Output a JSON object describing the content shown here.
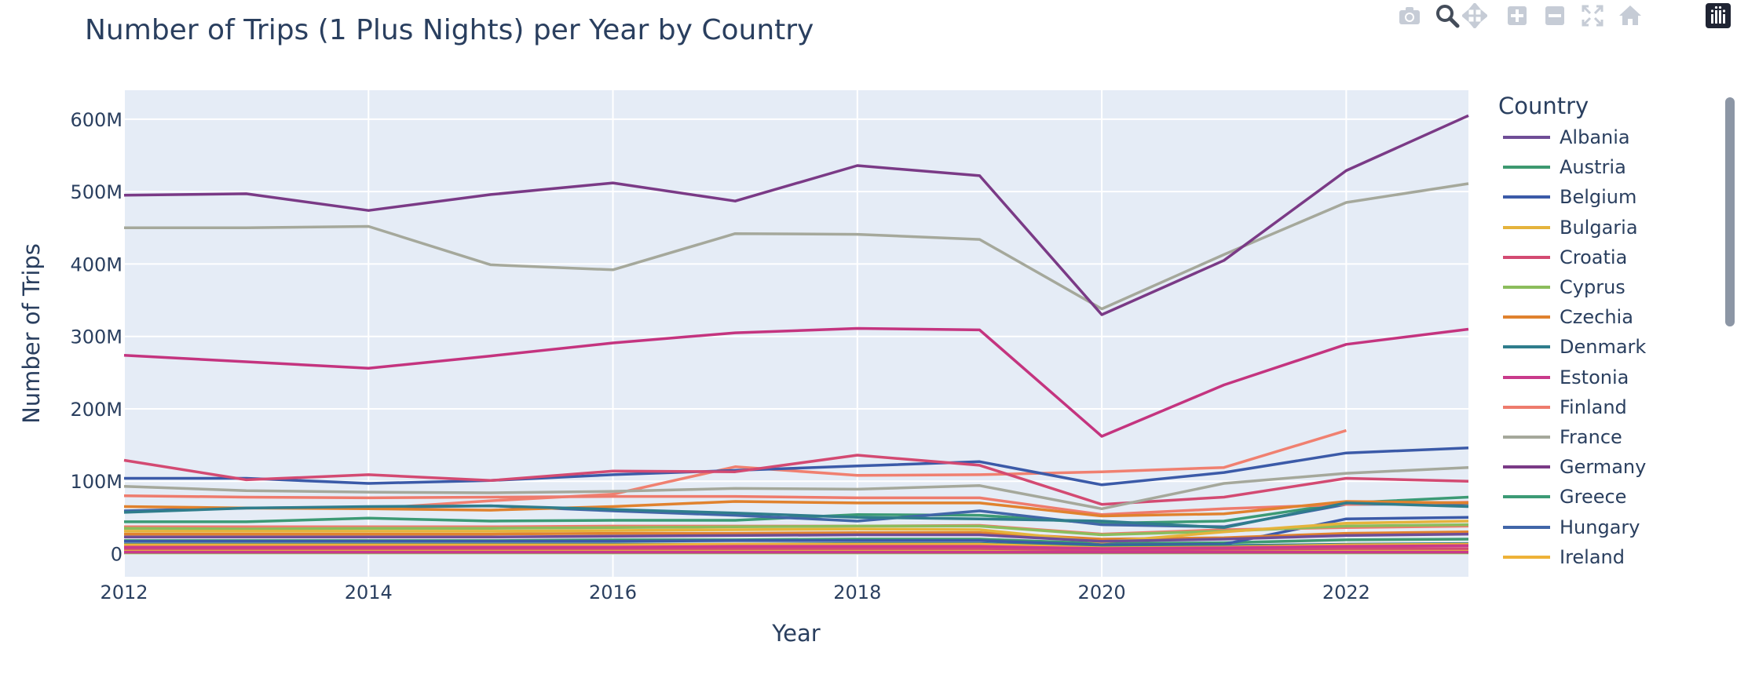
{
  "title": "Number of Trips (1 Plus Nights) per Year by Country",
  "modebar": {
    "icons": [
      "camera-icon",
      "zoom-icon",
      "pan-icon",
      "zoom-in-icon",
      "zoom-out-icon",
      "autoscale-icon",
      "home-icon",
      "plotly-logo-icon"
    ]
  },
  "chart_data": {
    "type": "line",
    "title": "Number of Trips (1 Plus Nights) per Year by Country",
    "xlabel": "Year",
    "ylabel": "Number of Trips",
    "x": [
      2012,
      2013,
      2014,
      2015,
      2016,
      2017,
      2018,
      2019,
      2020,
      2021,
      2022,
      2023
    ],
    "xlim": [
      2012,
      2023
    ],
    "ylim": [
      -32000000,
      640000000
    ],
    "x_ticks": [
      "2012",
      "2014",
      "2016",
      "2018",
      "2020",
      "2022"
    ],
    "y_ticks": [
      {
        "value": 0,
        "label": "0"
      },
      {
        "value": 100000000,
        "label": "100M"
      },
      {
        "value": 200000000,
        "label": "200M"
      },
      {
        "value": 300000000,
        "label": "300M"
      },
      {
        "value": 400000000,
        "label": "400M"
      },
      {
        "value": 500000000,
        "label": "500M"
      },
      {
        "value": 600000000,
        "label": "600M"
      }
    ],
    "grid": true,
    "plot_bgcolor": "#E5ECF6",
    "legend_title": "Country",
    "legend_position": "right",
    "series": [
      {
        "name": "Albania",
        "color": "#6F4D96",
        "values": [
          null,
          null,
          null,
          null,
          null,
          null,
          null,
          null,
          null,
          null,
          null,
          null
        ]
      },
      {
        "name": "Austria",
        "color": "#3D9970",
        "values": [
          18000000,
          18000000,
          18000000,
          18000000,
          19000000,
          19000000,
          20000000,
          20000000,
          14000000,
          15000000,
          19000000,
          20000000
        ]
      },
      {
        "name": "Belgium",
        "color": "#3B5AA8",
        "values": [
          17000000,
          17000000,
          17000000,
          17000000,
          17000000,
          18000000,
          18000000,
          18000000,
          12000000,
          13000000,
          48000000,
          50000000
        ]
      },
      {
        "name": "Bulgaria",
        "color": "#E5B33C",
        "values": [
          4000000,
          4000000,
          4000000,
          4000000,
          4000000,
          4000000,
          4000000,
          4000000,
          3000000,
          4000000,
          5000000,
          5000000
        ]
      },
      {
        "name": "Croatia",
        "color": "#D34A72",
        "values": [
          7000000,
          7000000,
          7000000,
          7000000,
          7000000,
          7000000,
          7000000,
          7000000,
          5000000,
          6000000,
          7000000,
          7000000
        ]
      },
      {
        "name": "Cyprus",
        "color": "#8BBD5C",
        "values": [
          1000000,
          1000000,
          1000000,
          1000000,
          1000000,
          1000000,
          1000000,
          1000000,
          1000000,
          1000000,
          1000000,
          1000000
        ]
      },
      {
        "name": "Czechia",
        "color": "#E0822E",
        "values": [
          27000000,
          27000000,
          27000000,
          27000000,
          28000000,
          28000000,
          29000000,
          29000000,
          20000000,
          22000000,
          28000000,
          30000000
        ]
      },
      {
        "name": "Denmark",
        "color": "#2F7D8C",
        "values": [
          13000000,
          13000000,
          13000000,
          13000000,
          13000000,
          13000000,
          14000000,
          14000000,
          10000000,
          11000000,
          13000000,
          14000000
        ]
      },
      {
        "name": "Estonia",
        "color": "#C93A8B",
        "values": [
          2000000,
          2000000,
          2000000,
          2000000,
          2000000,
          2000000,
          2000000,
          2000000,
          2000000,
          2000000,
          2000000,
          2000000
        ]
      },
      {
        "name": "Finland",
        "color": "#EE7B6D",
        "values": [
          37000000,
          37000000,
          37000000,
          37000000,
          38000000,
          38000000,
          38000000,
          39000000,
          27000000,
          33000000,
          36000000,
          38000000
        ]
      },
      {
        "name": "France",
        "color": "#A5A89B",
        "values": [
          450000000,
          450000000,
          452000000,
          399000000,
          392000000,
          442000000,
          441000000,
          434000000,
          338000000,
          413000000,
          485000000,
          511000000
        ]
      },
      {
        "name": "Germany",
        "color": "#7A3A86",
        "values": [
          495000000,
          497000000,
          474000000,
          496000000,
          512000000,
          487000000,
          536000000,
          522000000,
          330000000,
          405000000,
          529000000,
          605000000
        ]
      },
      {
        "name": "Greece",
        "color": "#3C9A75",
        "values": [
          44000000,
          44000000,
          49000000,
          45000000,
          46000000,
          46000000,
          54000000,
          53000000,
          42000000,
          45000000,
          70000000,
          78000000
        ]
      },
      {
        "name": "Hungary",
        "color": "#4166A8",
        "values": [
          59000000,
          63000000,
          64000000,
          66000000,
          59000000,
          53000000,
          45000000,
          59000000,
          40000000,
          37000000,
          68000000,
          69000000
        ]
      },
      {
        "name": "Ireland",
        "color": "#EEB238",
        "values": [
          12000000,
          12000000,
          12000000,
          12000000,
          12000000,
          13000000,
          13000000,
          13000000,
          8000000,
          9000000,
          12000000,
          13000000
        ]
      },
      {
        "name": "",
        "color": "#C4347F",
        "values": [
          274000000,
          265000000,
          256000000,
          273000000,
          291000000,
          305000000,
          311000000,
          309000000,
          162000000,
          233000000,
          289000000,
          310000000
        ]
      },
      {
        "name": "",
        "color": "#F08070",
        "values": [
          null,
          null,
          62000000,
          73000000,
          82000000,
          120000000,
          108000000,
          109000000,
          113000000,
          119000000,
          170000000,
          null
        ]
      },
      {
        "name": "",
        "color": "#3B5AA8",
        "values": [
          104000000,
          104000000,
          97000000,
          101000000,
          109000000,
          115000000,
          121000000,
          127000000,
          95000000,
          112000000,
          139000000,
          146000000
        ]
      },
      {
        "name": "",
        "color": "#D34A72",
        "values": [
          129000000,
          102000000,
          109000000,
          101000000,
          114000000,
          113000000,
          136000000,
          122000000,
          68000000,
          78000000,
          104000000,
          100000000
        ]
      },
      {
        "name": "",
        "color": "#A5A89B",
        "values": [
          93000000,
          87000000,
          85000000,
          84000000,
          86000000,
          90000000,
          89000000,
          94000000,
          62000000,
          97000000,
          111000000,
          119000000
        ]
      },
      {
        "name": "",
        "color": "#EE7B6D",
        "values": [
          80000000,
          78000000,
          77000000,
          78000000,
          79000000,
          79000000,
          77000000,
          77000000,
          54000000,
          62000000,
          68000000,
          71000000
        ]
      },
      {
        "name": "",
        "color": "#E0822E",
        "values": [
          65000000,
          63000000,
          62000000,
          60000000,
          65000000,
          72000000,
          70000000,
          70000000,
          52000000,
          55000000,
          72000000,
          70000000
        ]
      },
      {
        "name": "",
        "color": "#2F7D8C",
        "values": [
          57000000,
          63000000,
          65000000,
          66000000,
          61000000,
          56000000,
          50000000,
          48000000,
          45000000,
          36000000,
          70000000,
          65000000
        ]
      },
      {
        "name": "",
        "color": "#8BBD5C",
        "values": [
          35000000,
          34000000,
          35000000,
          35000000,
          36000000,
          37000000,
          38000000,
          38000000,
          26000000,
          31000000,
          38000000,
          40000000
        ]
      },
      {
        "name": "",
        "color": "#E5B33C",
        "values": [
          31000000,
          31000000,
          31000000,
          31000000,
          32000000,
          33000000,
          34000000,
          33000000,
          16000000,
          30000000,
          42000000,
          45000000
        ]
      },
      {
        "name": "",
        "color": "#6F4D96",
        "values": [
          23000000,
          23000000,
          23000000,
          23000000,
          24000000,
          25000000,
          26000000,
          26000000,
          17000000,
          20000000,
          25000000,
          27000000
        ]
      },
      {
        "name": "",
        "color": "#C93A8B",
        "values": [
          9000000,
          9000000,
          9000000,
          9000000,
          9000000,
          10000000,
          10000000,
          10000000,
          7000000,
          8000000,
          10000000,
          11000000
        ]
      }
    ]
  }
}
